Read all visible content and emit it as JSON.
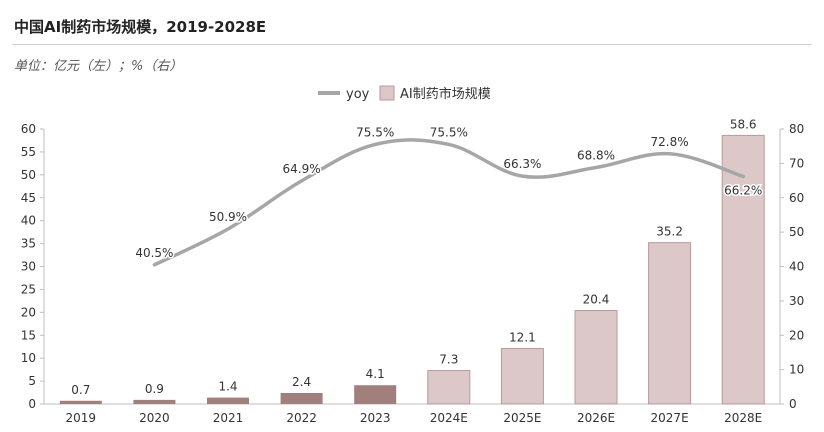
{
  "header": {
    "title": "中国AI制药市场规模，2019-2028E",
    "units": "单位：亿元（左）；%（右）"
  },
  "colors": {
    "actual_bar": "#a07f7d",
    "estimate_bar": "#dcc8c8",
    "estimate_bar_border": "#b89a9a",
    "yoy_line": "#a6a6a6",
    "axis": "#bfbfbf"
  },
  "chart_data": {
    "type": "bar",
    "title": "中国AI制药市场规模，2019-2028E",
    "categories": [
      "2019",
      "2020",
      "2021",
      "2022",
      "2023",
      "2024E",
      "2025E",
      "2026E",
      "2027E",
      "2028E"
    ],
    "series": [
      {
        "name": "AI制药市场规模",
        "type": "bar",
        "axis": "left",
        "unit": "亿元",
        "values": [
          0.7,
          0.9,
          1.4,
          2.4,
          4.1,
          7.3,
          12.1,
          20.4,
          35.2,
          58.6
        ],
        "labels": [
          "0.7",
          "0.9",
          "1.4",
          "2.4",
          "4.1",
          "7.3",
          "12.1",
          "20.4",
          "35.2",
          "58.6"
        ],
        "estimate": [
          false,
          false,
          false,
          false,
          false,
          true,
          true,
          true,
          true,
          true
        ]
      },
      {
        "name": "yoy",
        "type": "line",
        "axis": "right",
        "unit": "%",
        "values": [
          null,
          40.5,
          50.9,
          64.9,
          75.5,
          75.5,
          66.3,
          68.8,
          72.8,
          66.2
        ],
        "labels": [
          null,
          "40.5%",
          "50.9%",
          "64.9%",
          "75.5%",
          "75.5%",
          "66.3%",
          "68.8%",
          "72.8%",
          "66.2%"
        ]
      }
    ],
    "y_left": {
      "range": [
        0,
        60
      ],
      "ticks": [
        0,
        5,
        10,
        15,
        20,
        25,
        30,
        35,
        40,
        45,
        50,
        55,
        60
      ]
    },
    "y_right": {
      "range": [
        0,
        80
      ],
      "ticks": [
        0,
        10,
        20,
        30,
        40,
        50,
        60,
        70,
        80
      ]
    },
    "legend": {
      "position": "top-center",
      "items": [
        "yoy",
        "AI制药市场规模"
      ]
    },
    "grid": false
  }
}
